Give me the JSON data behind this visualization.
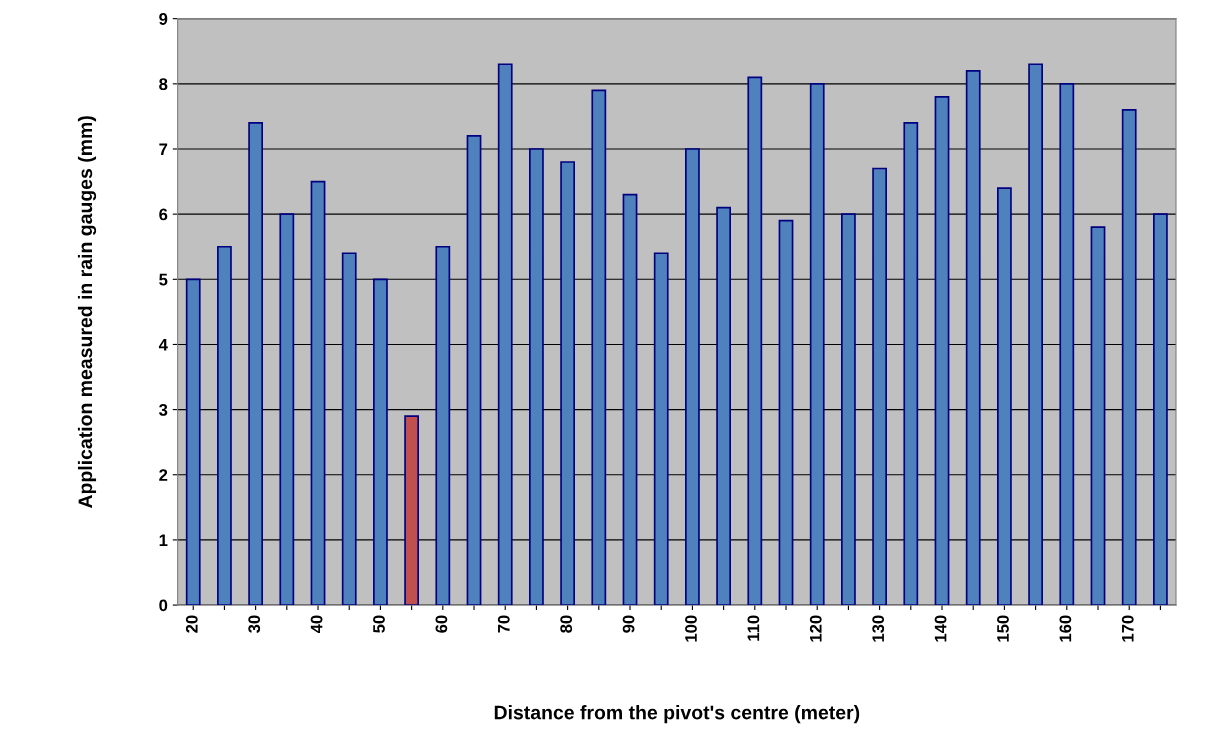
{
  "chart_data": {
    "type": "bar",
    "xlabel": "Distance from the pivot's centre (meter)",
    "ylabel": "Application measured in rain gauges (mm)",
    "categories": [
      "20",
      null,
      "30",
      null,
      "40",
      null,
      "50",
      null,
      "60",
      null,
      "70",
      null,
      "80",
      null,
      "90",
      null,
      "100",
      null,
      "110",
      null,
      "120",
      null,
      "130",
      null,
      "140",
      null,
      "150",
      null,
      "160",
      null,
      "170",
      null
    ],
    "values": [
      5.0,
      5.5,
      7.4,
      6.0,
      6.5,
      5.4,
      5.0,
      2.9,
      5.5,
      7.2,
      8.3,
      7.0,
      6.8,
      7.9,
      6.3,
      5.4,
      7.0,
      6.1,
      8.1,
      5.9,
      8.0,
      6.0,
      6.7,
      7.4,
      7.8,
      8.2,
      6.4,
      8.3,
      8.0,
      5.8,
      7.6,
      6.0
    ],
    "colors": [
      "#4f81bd",
      "#4f81bd",
      "#4f81bd",
      "#4f81bd",
      "#4f81bd",
      "#4f81bd",
      "#4f81bd",
      "#c0504d",
      "#4f81bd",
      "#4f81bd",
      "#4f81bd",
      "#4f81bd",
      "#4f81bd",
      "#4f81bd",
      "#4f81bd",
      "#4f81bd",
      "#4f81bd",
      "#4f81bd",
      "#4f81bd",
      "#4f81bd",
      "#4f81bd",
      "#4f81bd",
      "#4f81bd",
      "#4f81bd",
      "#4f81bd",
      "#4f81bd",
      "#4f81bd",
      "#4f81bd",
      "#4f81bd",
      "#4f81bd",
      "#4f81bd",
      "#4f81bd"
    ],
    "ylim": [
      0,
      9
    ],
    "yticks": [
      0,
      1,
      2,
      3,
      4,
      5,
      6,
      7,
      8,
      9
    ],
    "grid": "y",
    "legend": false
  }
}
